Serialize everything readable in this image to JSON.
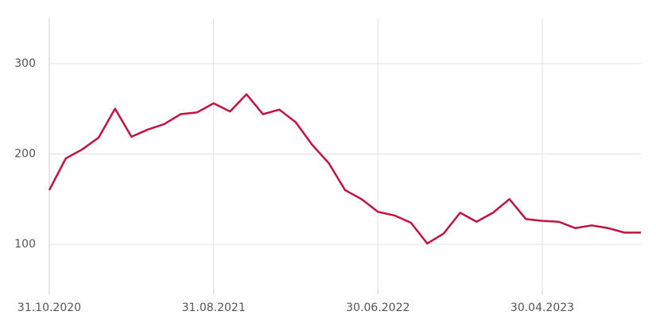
{
  "chart_data": {
    "type": "line",
    "categories": [
      "31.10.2020",
      null,
      null,
      null,
      null,
      null,
      null,
      null,
      null,
      null,
      "31.08.2021",
      null,
      null,
      null,
      null,
      null,
      null,
      null,
      null,
      null,
      "30.06.2022",
      null,
      null,
      null,
      null,
      null,
      null,
      null,
      null,
      null,
      "30.04.2023",
      null,
      null,
      null,
      null,
      null,
      null
    ],
    "series": [
      {
        "name": null,
        "color": "#c4123f",
        "values": [
          160,
          195,
          205,
          218,
          250,
          219,
          227,
          233,
          244,
          246,
          256,
          247,
          266,
          244,
          249,
          235,
          210,
          190,
          160,
          150,
          136,
          132,
          124,
          101,
          112,
          135,
          125,
          135,
          150,
          128,
          126,
          125,
          118,
          121,
          118,
          113,
          113
        ]
      }
    ],
    "ylim": [
      50,
      350
    ],
    "yticks": [
      100,
      200,
      300
    ],
    "grid": true
  }
}
